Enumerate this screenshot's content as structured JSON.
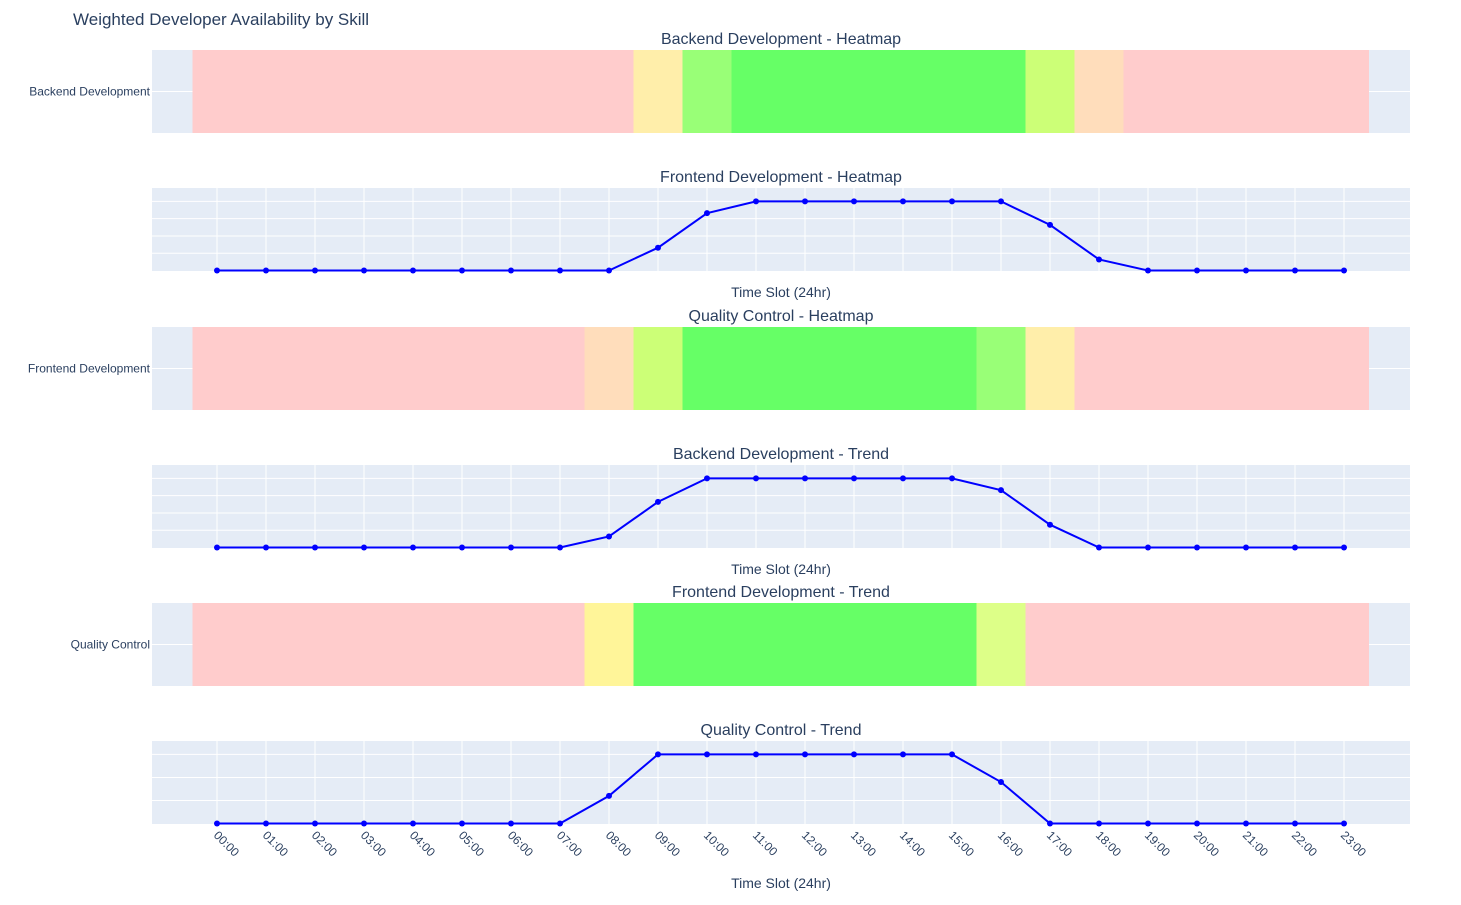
{
  "figure": {
    "title": "Weighted Developer Availability by Skill",
    "colors": {
      "plot_bg": "#e5ecf6",
      "grid": "#ffffff",
      "text": "#2a3f5f",
      "line": "#0000ff"
    }
  },
  "chart_data": [
    {
      "type": "heatmap",
      "title": "Backend Development - Heatmap",
      "y_label": "Backend Development",
      "x": [
        "00:00",
        "01:00",
        "02:00",
        "03:00",
        "04:00",
        "05:00",
        "06:00",
        "07:00",
        "08:00",
        "09:00",
        "10:00",
        "11:00",
        "12:00",
        "13:00",
        "14:00",
        "15:00",
        "16:00",
        "17:00",
        "18:00",
        "19:00",
        "20:00",
        "21:00",
        "22:00",
        "23:00"
      ],
      "colors": [
        "#ffcccc",
        "#ffcccc",
        "#ffcccc",
        "#ffcccc",
        "#ffcccc",
        "#ffcccc",
        "#ffcccc",
        "#ffcccc",
        "#ffcccc",
        "#ffeeaa",
        "#99ff77",
        "#66ff66",
        "#66ff66",
        "#66ff66",
        "#66ff66",
        "#66ff66",
        "#66ff66",
        "#ccff77",
        "#ffddbb",
        "#ffcccc",
        "#ffcccc",
        "#ffcccc",
        "#ffcccc",
        "#ffcccc"
      ]
    },
    {
      "type": "line",
      "title": "Frontend Development - Heatmap",
      "xlabel": "Time Slot (24hr)",
      "x": [
        "00:00",
        "01:00",
        "02:00",
        "03:00",
        "04:00",
        "05:00",
        "06:00",
        "07:00",
        "08:00",
        "09:00",
        "10:00",
        "11:00",
        "12:00",
        "13:00",
        "14:00",
        "15:00",
        "16:00",
        "17:00",
        "18:00",
        "19:00",
        "20:00",
        "21:00",
        "22:00",
        "23:00"
      ],
      "y": [
        0,
        0,
        0,
        0,
        0,
        0,
        0,
        0,
        0,
        0.33,
        0.83,
        1,
        1,
        1,
        1,
        1,
        1,
        0.66,
        0.16,
        0,
        0,
        0,
        0,
        0
      ],
      "ylim": [
        0,
        1.1
      ],
      "grid_lines": 4
    },
    {
      "type": "heatmap",
      "title": "Quality Control - Heatmap",
      "y_label": "Frontend Development",
      "x": [
        "00:00",
        "01:00",
        "02:00",
        "03:00",
        "04:00",
        "05:00",
        "06:00",
        "07:00",
        "08:00",
        "09:00",
        "10:00",
        "11:00",
        "12:00",
        "13:00",
        "14:00",
        "15:00",
        "16:00",
        "17:00",
        "18:00",
        "19:00",
        "20:00",
        "21:00",
        "22:00",
        "23:00"
      ],
      "colors": [
        "#ffcccc",
        "#ffcccc",
        "#ffcccc",
        "#ffcccc",
        "#ffcccc",
        "#ffcccc",
        "#ffcccc",
        "#ffcccc",
        "#ffddbb",
        "#ccff77",
        "#66ff66",
        "#66ff66",
        "#66ff66",
        "#66ff66",
        "#66ff66",
        "#66ff66",
        "#99ff77",
        "#ffeeaa",
        "#ffcccc",
        "#ffcccc",
        "#ffcccc",
        "#ffcccc",
        "#ffcccc",
        "#ffcccc"
      ]
    },
    {
      "type": "line",
      "title": "Backend Development - Trend",
      "xlabel": "Time Slot (24hr)",
      "x": [
        "00:00",
        "01:00",
        "02:00",
        "03:00",
        "04:00",
        "05:00",
        "06:00",
        "07:00",
        "08:00",
        "09:00",
        "10:00",
        "11:00",
        "12:00",
        "13:00",
        "14:00",
        "15:00",
        "16:00",
        "17:00",
        "18:00",
        "19:00",
        "20:00",
        "21:00",
        "22:00",
        "23:00"
      ],
      "y": [
        0,
        0,
        0,
        0,
        0,
        0,
        0,
        0,
        0.16,
        0.66,
        1,
        1,
        1,
        1,
        1,
        1,
        0.83,
        0.33,
        0,
        0,
        0,
        0,
        0,
        0
      ],
      "ylim": [
        0,
        1.1
      ],
      "grid_lines": 4
    },
    {
      "type": "heatmap",
      "title": "Frontend Development - Trend",
      "y_label": "Quality Control",
      "x": [
        "00:00",
        "01:00",
        "02:00",
        "03:00",
        "04:00",
        "05:00",
        "06:00",
        "07:00",
        "08:00",
        "09:00",
        "10:00",
        "11:00",
        "12:00",
        "13:00",
        "14:00",
        "15:00",
        "16:00",
        "17:00",
        "18:00",
        "19:00",
        "20:00",
        "21:00",
        "22:00",
        "23:00"
      ],
      "colors": [
        "#ffcccc",
        "#ffcccc",
        "#ffcccc",
        "#ffcccc",
        "#ffcccc",
        "#ffcccc",
        "#ffcccc",
        "#ffcccc",
        "#fff599",
        "#66ff66",
        "#66ff66",
        "#66ff66",
        "#66ff66",
        "#66ff66",
        "#66ff66",
        "#66ff66",
        "#ddff88",
        "#ffcccc",
        "#ffcccc",
        "#ffcccc",
        "#ffcccc",
        "#ffcccc",
        "#ffcccc",
        "#ffcccc"
      ]
    },
    {
      "type": "line",
      "title": "Quality Control - Trend",
      "xlabel": "Time Slot (24hr)",
      "x": [
        "00:00",
        "01:00",
        "02:00",
        "03:00",
        "04:00",
        "05:00",
        "06:00",
        "07:00",
        "08:00",
        "09:00",
        "10:00",
        "11:00",
        "12:00",
        "13:00",
        "14:00",
        "15:00",
        "16:00",
        "17:00",
        "18:00",
        "19:00",
        "20:00",
        "21:00",
        "22:00",
        "23:00"
      ],
      "y": [
        0,
        0,
        0,
        0,
        0,
        0,
        0,
        0,
        0.4,
        1,
        1,
        1,
        1,
        1,
        1,
        1,
        0.6,
        0,
        0,
        0,
        0,
        0,
        0,
        0
      ],
      "ylim": [
        0,
        1.1
      ],
      "grid_lines": 3,
      "show_tick_labels": true
    }
  ]
}
